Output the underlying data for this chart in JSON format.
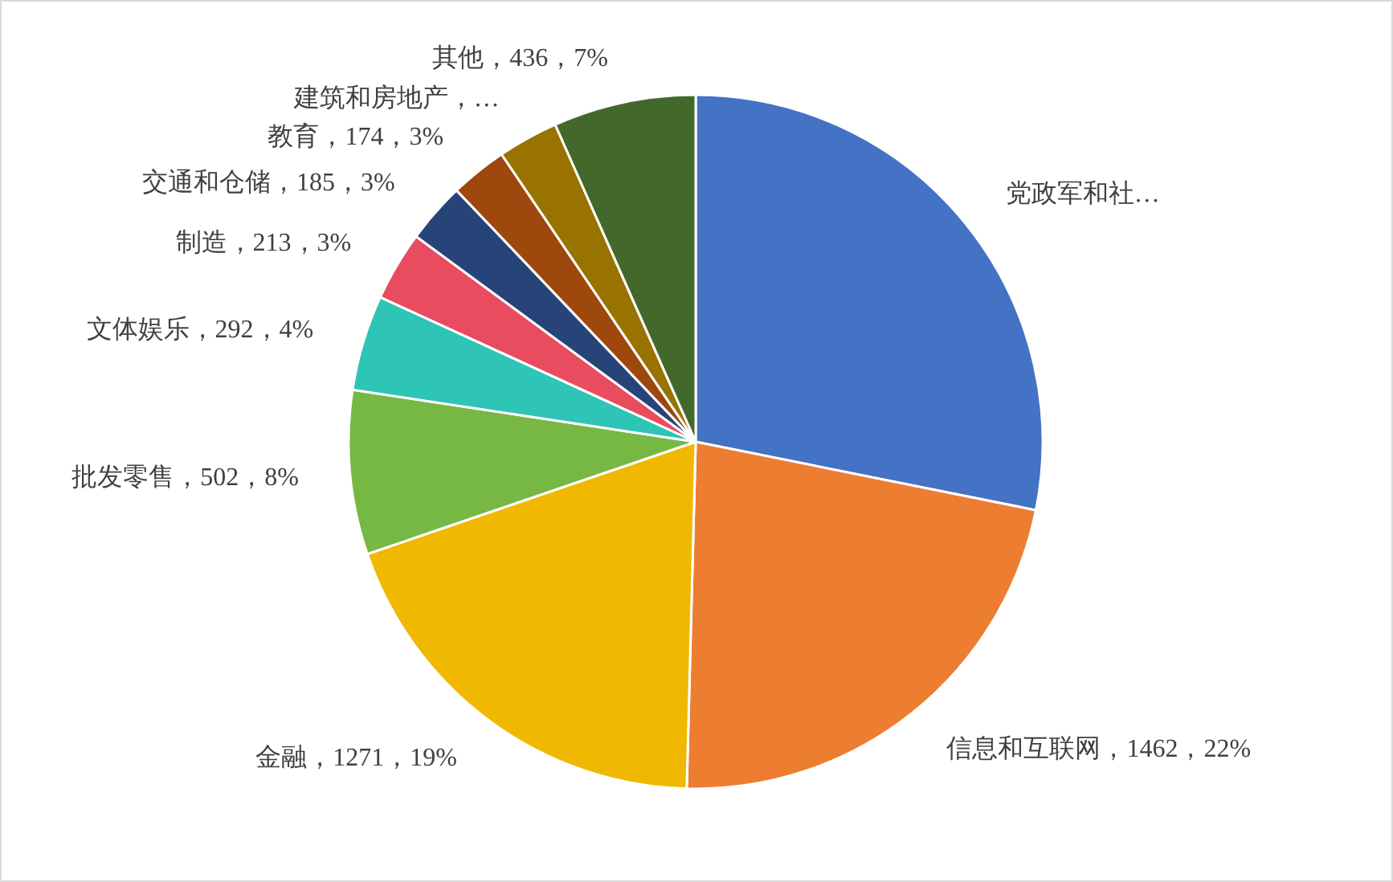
{
  "chart_data": {
    "type": "pie",
    "categories": [
      "党政军和社…",
      "信息和互联网",
      "金融",
      "批发零售",
      "文体娱乐",
      "制造",
      "交通和仓储",
      "教育",
      "建筑和房地产，…",
      "其他"
    ],
    "values": [
      1850,
      1462,
      1271,
      502,
      292,
      213,
      185,
      174,
      185,
      436
    ],
    "value_labels": [
      null,
      "1462，22%",
      "1271，19%",
      "502，8%",
      "292，4%",
      "213，3%",
      "185，3%",
      "174，3%",
      null,
      "436，7%"
    ],
    "colors": [
      "#4472c4",
      "#ed7d31",
      "#f0b800",
      "#76b843",
      "#2ec4b6",
      "#e84c5e",
      "#264478",
      "#9e480e",
      "#997300",
      "#43682b"
    ]
  }
}
